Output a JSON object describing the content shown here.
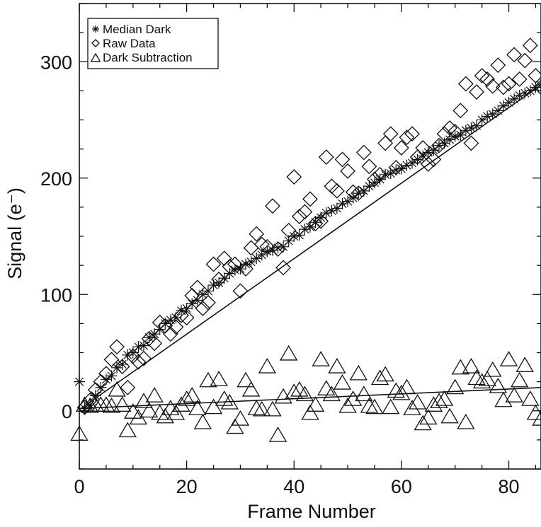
{
  "chart_data": {
    "type": "scatter",
    "xlabel": "Frame Number",
    "ylabel": "Signal (e⁻)",
    "xlim": [
      0,
      86
    ],
    "ylim": [
      -50,
      350
    ],
    "x_ticks": [
      0,
      20,
      40,
      60,
      80
    ],
    "x_tick_labels": [
      "0",
      "20",
      "40",
      "60",
      "80"
    ],
    "y_ticks": [
      0,
      100,
      200,
      300
    ],
    "y_tick_labels": [
      "0",
      "100",
      "200",
      "300"
    ],
    "x_minor_step": 5,
    "y_minor_step": 25,
    "grid": false,
    "legend_position": "top-left",
    "series": [
      {
        "name": "Median Dark",
        "marker": "asterisk",
        "x": [
          0,
          1,
          2,
          3,
          4,
          5,
          6,
          7,
          8,
          9,
          10,
          11,
          12,
          13,
          14,
          15,
          16,
          17,
          18,
          19,
          20,
          21,
          22,
          23,
          24,
          25,
          26,
          27,
          28,
          29,
          30,
          31,
          32,
          33,
          34,
          35,
          36,
          37,
          38,
          39,
          40,
          41,
          42,
          43,
          44,
          45,
          46,
          47,
          48,
          49,
          50,
          51,
          52,
          53,
          54,
          55,
          56,
          57,
          58,
          59,
          60,
          61,
          62,
          63,
          64,
          65,
          66,
          67,
          68,
          69,
          70,
          71,
          72,
          73,
          74,
          75,
          76,
          77,
          78,
          79,
          80,
          81,
          82,
          83,
          84,
          85,
          86
        ],
        "y": [
          25,
          2,
          5,
          13,
          20,
          27,
          30,
          37,
          40,
          48,
          50,
          55,
          56,
          63,
          66,
          70,
          75,
          78,
          80,
          86,
          88,
          92,
          95,
          100,
          103,
          108,
          110,
          114,
          118,
          121,
          122,
          126,
          128,
          131,
          134,
          137,
          138,
          140,
          141,
          146,
          150,
          151,
          156,
          158,
          162,
          166,
          170,
          172,
          174,
          178,
          180,
          183,
          187,
          189,
          193,
          196,
          199,
          203,
          204,
          207,
          208,
          211,
          213,
          216,
          219,
          222,
          224,
          228,
          230,
          233,
          236,
          237,
          241,
          243,
          245,
          250,
          253,
          255,
          258,
          262,
          265,
          268,
          271,
          273,
          275,
          278,
          280
        ]
      },
      {
        "name": "Raw Data",
        "marker": "diamond",
        "x": [
          1,
          2,
          3,
          4,
          5,
          6,
          7,
          8,
          9,
          10,
          11,
          12,
          13,
          14,
          15,
          16,
          17,
          18,
          19,
          20,
          21,
          22,
          23,
          24,
          25,
          26,
          27,
          28,
          29,
          30,
          31,
          32,
          33,
          34,
          35,
          36,
          37,
          38,
          39,
          40,
          41,
          42,
          43,
          44,
          45,
          46,
          47,
          48,
          49,
          50,
          51,
          52,
          53,
          54,
          55,
          56,
          57,
          58,
          59,
          60,
          61,
          62,
          63,
          64,
          65,
          66,
          67,
          68,
          69,
          70,
          71,
          72,
          73,
          74,
          75,
          76,
          77,
          78,
          79,
          80,
          81,
          82,
          83,
          84,
          85,
          86
        ],
        "y": [
          3,
          9,
          18,
          25,
          32,
          44,
          55,
          38,
          20,
          47,
          42,
          45,
          62,
          58,
          76,
          73,
          66,
          72,
          82,
          80,
          99,
          106,
          88,
          93,
          126,
          113,
          131,
          124,
          126,
          103,
          122,
          140,
          152,
          143,
          141,
          176,
          139,
          123,
          155,
          201,
          167,
          171,
          182,
          161,
          163,
          218,
          193,
          189,
          216,
          206,
          188,
          187,
          222,
          210,
          199,
          203,
          230,
          238,
          209,
          226,
          235,
          238,
          218,
          226,
          212,
          216,
          228,
          238,
          243,
          240,
          258,
          281,
          230,
          274,
          288,
          285,
          279,
          297,
          278,
          281,
          306,
          285,
          301,
          314,
          288,
          278
        ]
      },
      {
        "name": "Dark Subtraction",
        "marker": "triangle",
        "x": [
          0,
          1,
          2,
          3,
          4,
          5,
          6,
          7,
          8,
          9,
          10,
          11,
          12,
          13,
          14,
          15,
          16,
          17,
          18,
          19,
          20,
          21,
          22,
          23,
          24,
          25,
          26,
          27,
          28,
          29,
          30,
          31,
          32,
          33,
          34,
          35,
          36,
          37,
          38,
          39,
          40,
          41,
          42,
          43,
          44,
          45,
          46,
          47,
          48,
          49,
          50,
          51,
          52,
          53,
          54,
          55,
          56,
          57,
          58,
          59,
          60,
          61,
          62,
          63,
          64,
          65,
          66,
          67,
          68,
          69,
          70,
          71,
          72,
          73,
          74,
          75,
          76,
          77,
          78,
          79,
          80,
          81,
          82,
          83,
          84,
          85,
          86
        ],
        "y": [
          -20,
          5,
          4,
          5,
          5,
          5,
          4,
          18,
          5,
          -17,
          -1,
          -6,
          8,
          0,
          13,
          -2,
          -5,
          2,
          -2,
          5,
          10,
          13,
          2,
          -10,
          26,
          3,
          27,
          10,
          7,
          -14,
          -7,
          26,
          18,
          2,
          1,
          38,
          1,
          -21,
          12,
          49,
          16,
          18,
          14,
          -2,
          5,
          44,
          19,
          14,
          38,
          24,
          4,
          10,
          32,
          14,
          4,
          3,
          28,
          31,
          3,
          17,
          15,
          20,
          2,
          7,
          -11,
          -6,
          5,
          8,
          10,
          -5,
          20,
          37,
          -10,
          38,
          28,
          25,
          27,
          35,
          21,
          9,
          44,
          13,
          26,
          39,
          10,
          -2,
          -7
        ]
      }
    ],
    "fit_lines": [
      {
        "of": "Median Dark",
        "x": [
          0,
          86
        ],
        "y": [
          1,
          280
        ]
      },
      {
        "of": "Dark Subtraction",
        "x": [
          0,
          86
        ],
        "y": [
          2,
          20
        ]
      }
    ]
  }
}
